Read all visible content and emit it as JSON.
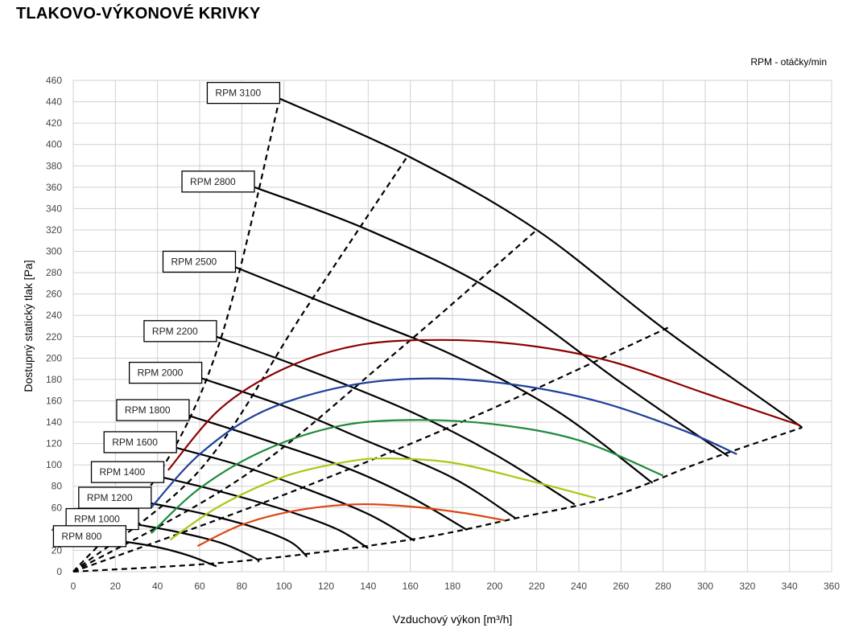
{
  "title": "TLAKOVO-VÝKONOVÉ KRIVKY",
  "rpm_note": "RPM - otáčky/min",
  "chart_data": {
    "type": "line",
    "title": "TLAKOVO-VÝKONOVÉ KRIVKY",
    "xlabel": "Vzduchový výkon [m³/h]",
    "ylabel": "Dostupný statický tlak [Pa]",
    "xlim": [
      0,
      360
    ],
    "ylim": [
      0,
      460
    ],
    "x_ticks": [
      0,
      20,
      40,
      60,
      80,
      100,
      120,
      140,
      160,
      180,
      200,
      220,
      240,
      260,
      280,
      300,
      320,
      340,
      360
    ],
    "y_ticks": [
      0,
      20,
      40,
      60,
      80,
      100,
      120,
      140,
      160,
      180,
      200,
      220,
      240,
      260,
      280,
      300,
      320,
      340,
      360,
      380,
      400,
      420,
      440,
      460
    ],
    "grid": true,
    "colors": {
      "fan_curve": "#000000",
      "system_dashed": "#000000"
    },
    "fan_curves": [
      {
        "name": "RPM 3100",
        "points": [
          [
            98,
            443
          ],
          [
            160,
            388
          ],
          [
            220,
            320
          ],
          [
            280,
            228
          ],
          [
            346,
            135
          ]
        ]
      },
      {
        "name": "RPM 2800",
        "points": [
          [
            86,
            360
          ],
          [
            140,
            320
          ],
          [
            200,
            262
          ],
          [
            260,
            177
          ],
          [
            311,
            108
          ]
        ]
      },
      {
        "name": "RPM 2500",
        "points": [
          [
            77,
            285
          ],
          [
            130,
            243
          ],
          [
            180,
            203
          ],
          [
            230,
            150
          ],
          [
            275,
            83
          ]
        ]
      },
      {
        "name": "RPM 2200",
        "points": [
          [
            68,
            220
          ],
          [
            110,
            190
          ],
          [
            160,
            150
          ],
          [
            200,
            110
          ],
          [
            238,
            63
          ]
        ]
      },
      {
        "name": "RPM 2000",
        "points": [
          [
            61,
            181
          ],
          [
            100,
            155
          ],
          [
            140,
            122
          ],
          [
            180,
            88
          ],
          [
            210,
            50
          ]
        ]
      },
      {
        "name": "RPM 1800",
        "points": [
          [
            55,
            146
          ],
          [
            90,
            124
          ],
          [
            130,
            97
          ],
          [
            160,
            70
          ],
          [
            187,
            39
          ]
        ]
      },
      {
        "name": "RPM 1600",
        "points": [
          [
            49,
            116
          ],
          [
            80,
            99
          ],
          [
            110,
            78
          ],
          [
            140,
            54
          ],
          [
            162,
            29
          ]
        ]
      },
      {
        "name": "RPM 1400",
        "points": [
          [
            43,
            88
          ],
          [
            70,
            75
          ],
          [
            100,
            58
          ],
          [
            125,
            40
          ],
          [
            140,
            22
          ]
        ]
      },
      {
        "name": "RPM 1200",
        "points": [
          [
            37,
            64
          ],
          [
            60,
            55
          ],
          [
            85,
            42
          ],
          [
            103,
            28
          ],
          [
            111,
            14
          ]
        ]
      },
      {
        "name": "RPM 1000",
        "points": [
          [
            31,
            44
          ],
          [
            50,
            37
          ],
          [
            70,
            27
          ],
          [
            86,
            13
          ],
          [
            88,
            9
          ]
        ]
      },
      {
        "name": "RPM 800",
        "points": [
          [
            25,
            28
          ],
          [
            40,
            23
          ],
          [
            55,
            15
          ],
          [
            68,
            5
          ]
        ]
      }
    ],
    "series": [
      {
        "color": "#8b0000",
        "points": [
          [
            45,
            95
          ],
          [
            70,
            153
          ],
          [
            100,
            190
          ],
          [
            135,
            212
          ],
          [
            175,
            217
          ],
          [
            215,
            212
          ],
          [
            255,
            197
          ],
          [
            300,
            167
          ],
          [
            345,
            137
          ]
        ]
      },
      {
        "color": "#1f3f9a",
        "points": [
          [
            37,
            60
          ],
          [
            60,
            110
          ],
          [
            90,
            150
          ],
          [
            130,
            174
          ],
          [
            170,
            181
          ],
          [
            210,
            175
          ],
          [
            250,
            159
          ],
          [
            290,
            132
          ],
          [
            315,
            110
          ]
        ]
      },
      {
        "color": "#1e8a3c",
        "points": [
          [
            37,
            36
          ],
          [
            60,
            78
          ],
          [
            90,
            113
          ],
          [
            125,
            136
          ],
          [
            160,
            142
          ],
          [
            200,
            138
          ],
          [
            240,
            123
          ],
          [
            280,
            90
          ]
        ]
      },
      {
        "color": "#a8c814",
        "points": [
          [
            46,
            30
          ],
          [
            70,
            62
          ],
          [
            100,
            89
          ],
          [
            130,
            103
          ],
          [
            150,
            106
          ],
          [
            180,
            102
          ],
          [
            215,
            86
          ],
          [
            248,
            69
          ]
        ]
      },
      {
        "color": "#dd4411",
        "points": [
          [
            59,
            24
          ],
          [
            80,
            44
          ],
          [
            105,
            57
          ],
          [
            133,
            63
          ],
          [
            160,
            61
          ],
          [
            185,
            55
          ],
          [
            205,
            48
          ]
        ]
      }
    ],
    "system_curves": [
      {
        "points": [
          [
            0,
            0
          ],
          [
            40,
            90
          ],
          [
            70,
            218
          ],
          [
            98,
            443
          ]
        ]
      },
      {
        "points": [
          [
            0,
            0
          ],
          [
            60,
            95
          ],
          [
            110,
            245
          ],
          [
            158,
            387
          ]
        ]
      },
      {
        "points": [
          [
            0,
            0
          ],
          [
            80,
            88
          ],
          [
            150,
            200
          ],
          [
            220,
            320
          ]
        ]
      },
      {
        "points": [
          [
            0,
            0
          ],
          [
            100,
            72
          ],
          [
            190,
            145
          ],
          [
            284,
            230
          ]
        ]
      },
      {
        "points": [
          [
            0,
            0
          ],
          [
            80,
            10
          ],
          [
            160,
            30
          ],
          [
            210,
            50
          ],
          [
            255,
            70
          ],
          [
            300,
            104
          ],
          [
            346,
            135
          ]
        ]
      }
    ]
  }
}
